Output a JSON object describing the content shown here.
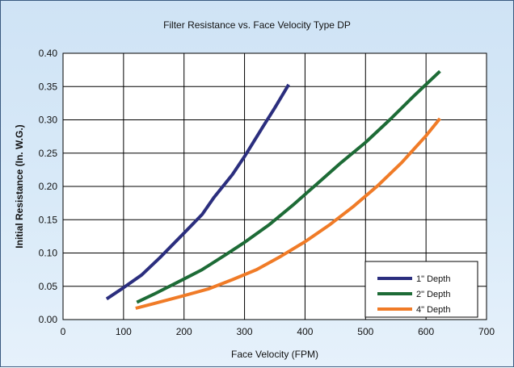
{
  "chart_data": {
    "type": "line",
    "title": "Filter Resistance vs. Face Velocity Type DP",
    "xlabel": "Face Velocity (FPM)",
    "ylabel": "Initial Resistance (In. W.G.)",
    "xlim": [
      0,
      700
    ],
    "ylim": [
      0,
      0.4
    ],
    "x_ticks": [
      "0",
      "100",
      "200",
      "300",
      "400",
      "500",
      "600",
      "700"
    ],
    "y_ticks": [
      "0.00",
      "0.05",
      "0.10",
      "0.15",
      "0.20",
      "0.25",
      "0.30",
      "0.35",
      "0.40"
    ],
    "grid": true,
    "legend_position": "bottom-right",
    "series": [
      {
        "name": "1\" Depth",
        "color": "#2b2e7e",
        "x": [
          72,
          100,
          130,
          160,
          200,
          230,
          250,
          280,
          300,
          330,
          350,
          373
        ],
        "y": [
          0.031,
          0.048,
          0.067,
          0.093,
          0.13,
          0.158,
          0.184,
          0.218,
          0.245,
          0.289,
          0.318,
          0.353
        ]
      },
      {
        "name": "2\" Depth",
        "color": "#1d6b36",
        "x": [
          122,
          150,
          200,
          230,
          270,
          300,
          340,
          380,
          420,
          460,
          500,
          540,
          580,
          623
        ],
        "y": [
          0.026,
          0.038,
          0.061,
          0.075,
          0.098,
          0.116,
          0.142,
          0.172,
          0.204,
          0.236,
          0.266,
          0.3,
          0.336,
          0.373
        ]
      },
      {
        "name": "4\" Depth",
        "color": "#f07b27",
        "x": [
          120,
          150,
          200,
          240,
          280,
          320,
          360,
          400,
          440,
          480,
          520,
          560,
          600,
          623
        ],
        "y": [
          0.017,
          0.024,
          0.036,
          0.046,
          0.06,
          0.075,
          0.095,
          0.117,
          0.142,
          0.17,
          0.201,
          0.236,
          0.276,
          0.302
        ]
      }
    ]
  }
}
